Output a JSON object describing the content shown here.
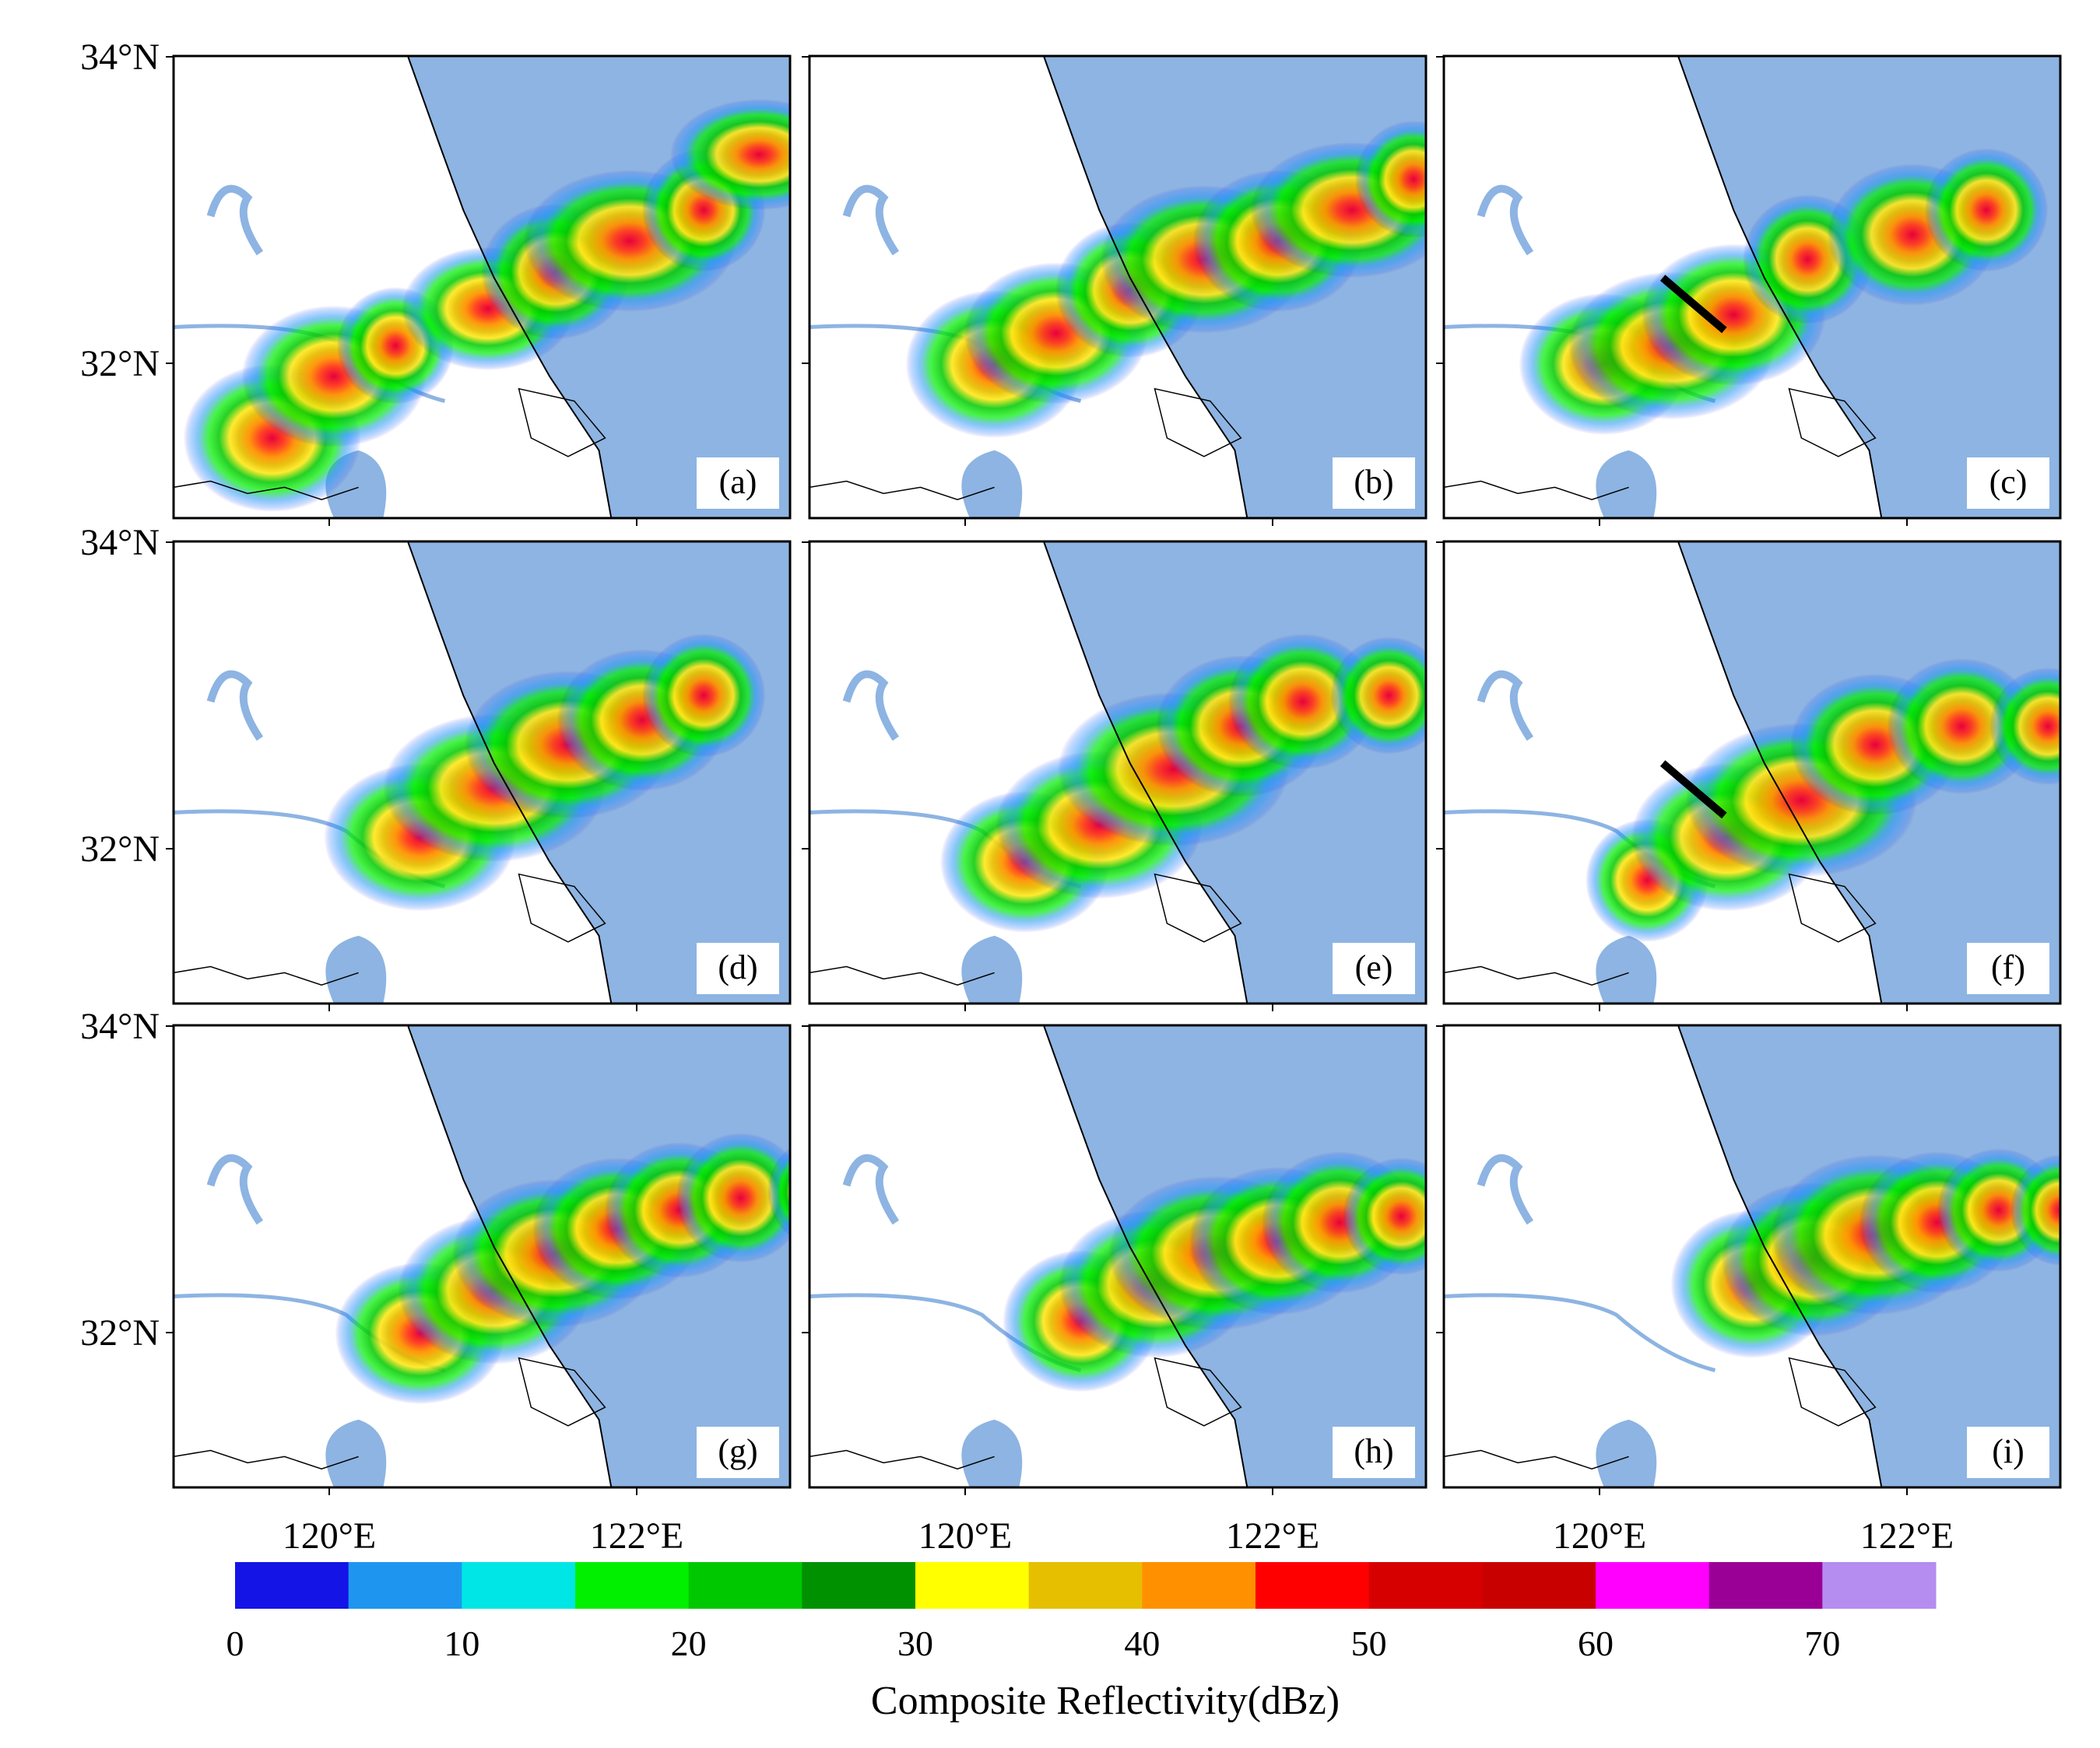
{
  "panels": [
    {
      "label": "(a)",
      "cells": [
        [
          160,
          620,
          120,
          1.2
        ],
        [
          260,
          520,
          115,
          1.3
        ],
        [
          360,
          470,
          95,
          1.0
        ],
        [
          510,
          410,
          100,
          1.4
        ],
        [
          620,
          350,
          110,
          1.1
        ],
        [
          740,
          300,
          115,
          1.5
        ],
        [
          860,
          250,
          100,
          1.0
        ],
        [
          950,
          160,
          90,
          1.6
        ],
        [
          1100,
          250,
          100,
          1.0
        ],
        [
          1180,
          200,
          80,
          1.8
        ],
        [
          1280,
          300,
          95,
          1.1
        ],
        [
          1500,
          350,
          90,
          1.0
        ],
        [
          1620,
          420,
          80,
          1.2
        ],
        [
          1840,
          540,
          75,
          1.0
        ]
      ]
    },
    {
      "label": "(b)",
      "cells": [
        [
          300,
          500,
          120,
          1.2
        ],
        [
          400,
          450,
          115,
          1.3
        ],
        [
          520,
          380,
          110,
          1.1
        ],
        [
          640,
          330,
          120,
          1.4
        ],
        [
          760,
          300,
          115,
          1.2
        ],
        [
          880,
          250,
          110,
          1.5
        ],
        [
          980,
          200,
          95,
          1.0
        ],
        [
          1140,
          250,
          100,
          1.1
        ],
        [
          1280,
          280,
          90,
          1.0
        ],
        [
          1420,
          250,
          80,
          0.9
        ]
      ]
    },
    {
      "label": "(c)",
      "cells": [
        [
          260,
          500,
          115,
          1.2
        ],
        [
          370,
          470,
          120,
          1.4
        ],
        [
          470,
          420,
          115,
          1.3
        ],
        [
          590,
          330,
          105,
          1.0
        ],
        [
          760,
          290,
          115,
          1.2
        ],
        [
          880,
          250,
          100,
          1.0
        ],
        [
          1100,
          220,
          80,
          0.9
        ],
        [
          1250,
          250,
          85,
          1.0
        ]
      ]
    },
    {
      "label": "(d)",
      "cells": [
        [
          400,
          480,
          120,
          1.3
        ],
        [
          520,
          400,
          120,
          1.5
        ],
        [
          640,
          330,
          120,
          1.4
        ],
        [
          760,
          290,
          115,
          1.2
        ],
        [
          860,
          250,
          100,
          1.0
        ],
        [
          1080,
          280,
          80,
          0.9
        ]
      ]
    },
    {
      "label": "(e)",
      "cells": [
        [
          350,
          520,
          115,
          1.2
        ],
        [
          470,
          460,
          120,
          1.4
        ],
        [
          590,
          370,
          125,
          1.5
        ],
        [
          700,
          300,
          115,
          1.2
        ],
        [
          800,
          260,
          110,
          1.1
        ],
        [
          940,
          250,
          95,
          1.0
        ],
        [
          1090,
          250,
          80,
          0.9
        ]
      ]
    },
    {
      "label": "(f)",
      "cells": [
        [
          330,
          550,
          100,
          1.0
        ],
        [
          460,
          480,
          120,
          1.3
        ],
        [
          580,
          420,
          125,
          1.5
        ],
        [
          700,
          330,
          115,
          1.2
        ],
        [
          840,
          300,
          110,
          1.1
        ],
        [
          980,
          300,
          95,
          1.0
        ],
        [
          1120,
          300,
          85,
          0.9
        ]
      ]
    },
    {
      "label": "(g)",
      "cells": [
        [
          400,
          500,
          115,
          1.2
        ],
        [
          520,
          430,
          120,
          1.3
        ],
        [
          620,
          370,
          120,
          1.4
        ],
        [
          720,
          330,
          115,
          1.2
        ],
        [
          820,
          300,
          110,
          1.1
        ],
        [
          920,
          280,
          105,
          1.0
        ],
        [
          1040,
          270,
          85,
          0.9
        ]
      ]
    },
    {
      "label": "(h)",
      "cells": [
        [
          440,
          480,
          115,
          1.1
        ],
        [
          560,
          420,
          120,
          1.3
        ],
        [
          660,
          370,
          125,
          1.4
        ],
        [
          760,
          350,
          120,
          1.2
        ],
        [
          860,
          320,
          115,
          1.1
        ],
        [
          960,
          310,
          95,
          1.0
        ]
      ]
    },
    {
      "label": "(i)",
      "cells": [
        [
          500,
          420,
          120,
          1.1
        ],
        [
          600,
          380,
          125,
          1.2
        ],
        [
          700,
          340,
          130,
          1.3
        ],
        [
          800,
          320,
          115,
          1.1
        ],
        [
          900,
          300,
          100,
          1.0
        ],
        [
          1000,
          300,
          90,
          0.9
        ]
      ]
    }
  ],
  "axes": {
    "lat_ticks": [
      "34°N",
      "32°N"
    ],
    "lon_ticks": [
      "120°E",
      "122°E"
    ]
  },
  "colorbar": {
    "title": "Composite Reflectivity(dBz)",
    "tick_labels": [
      "0",
      "10",
      "20",
      "30",
      "40",
      "50",
      "60",
      "70"
    ],
    "colors": [
      "#1414e6",
      "#1e96f0",
      "#00e6e6",
      "#00f000",
      "#00c800",
      "#009100",
      "#ffff00",
      "#e6bf00",
      "#ff9100",
      "#ff0000",
      "#d70000",
      "#c80000",
      "#ff00ff",
      "#9a0096",
      "#b58cf0"
    ],
    "bins": [
      0,
      5,
      10,
      15,
      20,
      25,
      30,
      35,
      40,
      45,
      50,
      55,
      60,
      65,
      70,
      75
    ]
  }
}
